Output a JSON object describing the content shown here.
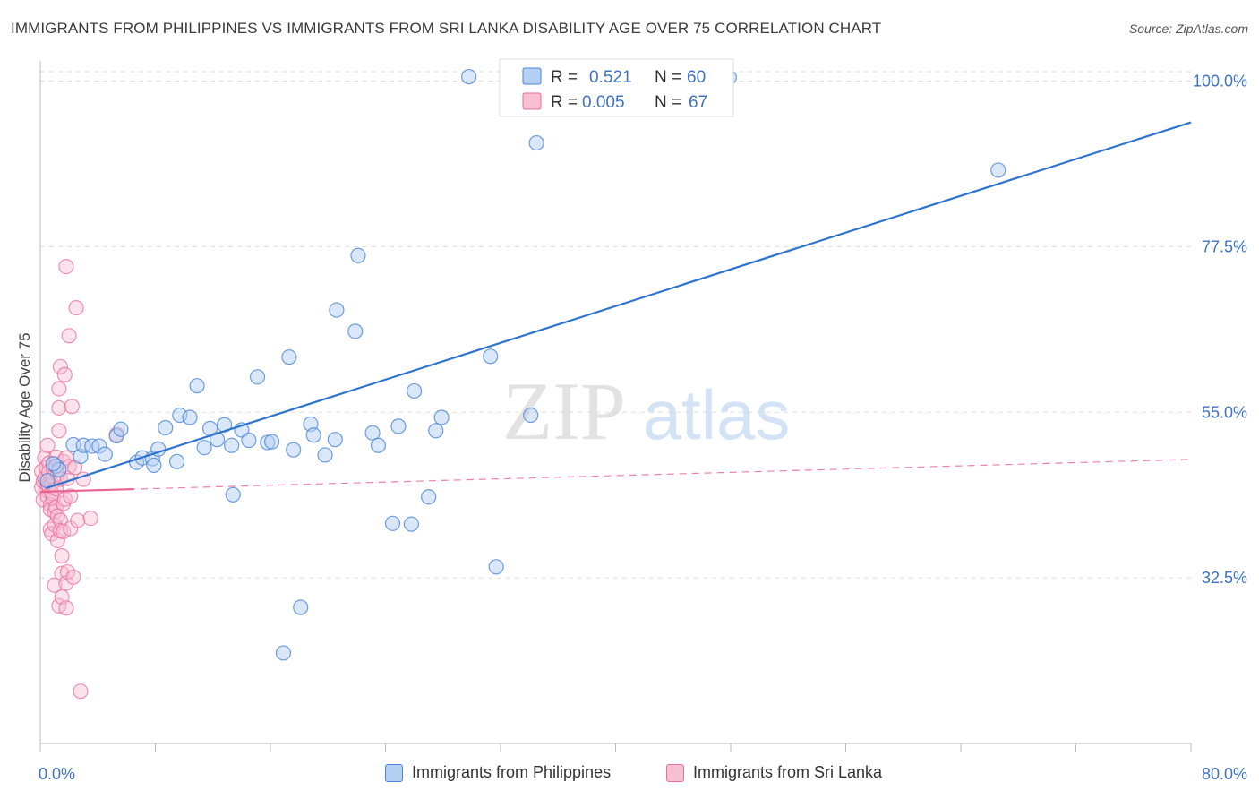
{
  "title": "IMMIGRANTS FROM PHILIPPINES VS IMMIGRANTS FROM SRI LANKA DISABILITY AGE OVER 75 CORRELATION CHART",
  "source": "Source: ZipAtlas.com",
  "watermark": {
    "zip": "ZIP",
    "atlas": "atlas"
  },
  "colors": {
    "blue": "#4a86d8",
    "blue_fill": "#b6d0f3",
    "blue_line": "#2f74d0",
    "pink": "#e96f9a",
    "pink_fill": "#f7bfd2",
    "pink_line": "#e8648f",
    "axis_label": "#3f73c4",
    "grid": "#dddddd"
  },
  "legend_top": {
    "rows": [
      {
        "r_label": "R =",
        "r_value": "0.521",
        "n_label": "N =",
        "n_value": "60",
        "series": "blue"
      },
      {
        "r_label": "R =",
        "r_value": "0.005",
        "n_label": "N =",
        "n_value": "67",
        "series": "pink"
      }
    ]
  },
  "legend_bottom": [
    {
      "label": "Immigrants from Philippines",
      "series": "blue"
    },
    {
      "label": "Immigrants from Sri Lanka",
      "series": "pink"
    }
  ],
  "chart_data": {
    "type": "scatter",
    "title": "IMMIGRANTS FROM PHILIPPINES VS IMMIGRANTS FROM SRI LANKA DISABILITY AGE OVER 75 CORRELATION CHART",
    "xlabel": "",
    "ylabel": "Disability Age Over 75",
    "xlim": [
      0,
      80
    ],
    "ylim": [
      10,
      102.5
    ],
    "x_tick_labels": [
      "0.0%",
      "80.0%"
    ],
    "y_ticks": [
      32.5,
      55.0,
      77.5,
      100.0
    ],
    "y_tick_labels": [
      "32.5%",
      "55.0%",
      "77.5%",
      "100.0%"
    ],
    "grid": true,
    "legend_position": "top-center",
    "series": [
      {
        "name": "Immigrants from Philippines",
        "color": "blue",
        "trend": {
          "x": [
            0.4,
            80
          ],
          "y": [
            44.7,
            94.4
          ]
        },
        "points": [
          [
            0.5,
            45.7
          ],
          [
            1.1,
            47.7
          ],
          [
            1.3,
            47.2
          ],
          [
            2.3,
            50.6
          ],
          [
            2.8,
            49.0
          ],
          [
            3.0,
            50.5
          ],
          [
            3.6,
            50.4
          ],
          [
            4.1,
            50.4
          ],
          [
            4.5,
            49.3
          ],
          [
            5.3,
            51.8
          ],
          [
            5.6,
            52.7
          ],
          [
            6.7,
            48.2
          ],
          [
            7.1,
            48.8
          ],
          [
            7.8,
            48.7
          ],
          [
            7.9,
            47.8
          ],
          [
            8.2,
            50.0
          ],
          [
            8.7,
            52.9
          ],
          [
            9.5,
            48.3
          ],
          [
            9.7,
            54.6
          ],
          [
            10.4,
            54.3
          ],
          [
            10.9,
            58.6
          ],
          [
            11.4,
            50.2
          ],
          [
            11.8,
            52.8
          ],
          [
            12.3,
            51.3
          ],
          [
            12.8,
            53.3
          ],
          [
            13.3,
            50.5
          ],
          [
            13.4,
            43.8
          ],
          [
            14.0,
            52.6
          ],
          [
            14.5,
            51.2
          ],
          [
            15.1,
            59.8
          ],
          [
            15.8,
            50.9
          ],
          [
            16.1,
            51.0
          ],
          [
            16.9,
            22.3
          ],
          [
            17.3,
            62.5
          ],
          [
            17.6,
            49.9
          ],
          [
            18.1,
            28.5
          ],
          [
            18.8,
            53.4
          ],
          [
            19.0,
            51.9
          ],
          [
            19.8,
            49.2
          ],
          [
            20.5,
            51.3
          ],
          [
            20.6,
            68.9
          ],
          [
            21.9,
            66.0
          ],
          [
            22.1,
            76.3
          ],
          [
            23.1,
            52.2
          ],
          [
            23.5,
            50.5
          ],
          [
            24.5,
            39.9
          ],
          [
            24.9,
            53.1
          ],
          [
            25.8,
            39.8
          ],
          [
            26.0,
            57.9
          ],
          [
            27.0,
            43.5
          ],
          [
            27.5,
            52.5
          ],
          [
            27.9,
            54.3
          ],
          [
            29.8,
            100.6
          ],
          [
            31.3,
            62.6
          ],
          [
            31.7,
            34.0
          ],
          [
            34.1,
            54.6
          ],
          [
            34.5,
            91.6
          ],
          [
            47.9,
            100.5
          ],
          [
            66.6,
            87.9
          ],
          [
            0.9,
            48.0
          ]
        ]
      },
      {
        "name": "Immigrants from Sri Lanka",
        "color": "pink",
        "trend": {
          "x": [
            0,
            80
          ],
          "y": [
            44.2,
            48.6
          ]
        },
        "trend_solid_to_x": 6.5,
        "points": [
          [
            0.1,
            47.0
          ],
          [
            0.1,
            44.8
          ],
          [
            0.2,
            45.6
          ],
          [
            0.2,
            43.1
          ],
          [
            0.3,
            48.8
          ],
          [
            0.3,
            46.0
          ],
          [
            0.4,
            47.5
          ],
          [
            0.4,
            44.4
          ],
          [
            0.5,
            45.1
          ],
          [
            0.5,
            43.6
          ],
          [
            0.5,
            50.5
          ],
          [
            0.6,
            48.1
          ],
          [
            0.6,
            46.9
          ],
          [
            0.6,
            44.9
          ],
          [
            0.7,
            42.4
          ],
          [
            0.7,
            41.8
          ],
          [
            0.7,
            39.1
          ],
          [
            0.8,
            45.3
          ],
          [
            0.8,
            44.0
          ],
          [
            0.8,
            38.5
          ],
          [
            0.9,
            47.4
          ],
          [
            0.9,
            46.2
          ],
          [
            0.9,
            43.3
          ],
          [
            1.0,
            41.5
          ],
          [
            1.0,
            39.7
          ],
          [
            1.0,
            31.5
          ],
          [
            1.1,
            48.9
          ],
          [
            1.1,
            44.6
          ],
          [
            1.1,
            42.1
          ],
          [
            1.2,
            46.6
          ],
          [
            1.2,
            40.9
          ],
          [
            1.2,
            37.6
          ],
          [
            1.3,
            58.2
          ],
          [
            1.3,
            55.6
          ],
          [
            1.3,
            52.5
          ],
          [
            1.3,
            28.7
          ],
          [
            1.4,
            61.2
          ],
          [
            1.4,
            45.9
          ],
          [
            1.4,
            40.3
          ],
          [
            1.4,
            38.9
          ],
          [
            1.5,
            29.9
          ],
          [
            1.5,
            35.5
          ],
          [
            1.5,
            33.1
          ],
          [
            1.6,
            48.3
          ],
          [
            1.6,
            42.6
          ],
          [
            1.6,
            38.8
          ],
          [
            1.7,
            60.1
          ],
          [
            1.7,
            43.2
          ],
          [
            1.8,
            74.8
          ],
          [
            1.8,
            48.8
          ],
          [
            1.8,
            31.8
          ],
          [
            1.8,
            28.4
          ],
          [
            1.9,
            46.0
          ],
          [
            1.9,
            33.3
          ],
          [
            2.0,
            65.4
          ],
          [
            2.0,
            47.6
          ],
          [
            2.1,
            43.6
          ],
          [
            2.1,
            39.2
          ],
          [
            2.2,
            55.8
          ],
          [
            2.3,
            32.6
          ],
          [
            2.4,
            47.5
          ],
          [
            2.5,
            69.2
          ],
          [
            2.6,
            40.3
          ],
          [
            2.8,
            17.1
          ],
          [
            3.0,
            45.9
          ],
          [
            3.5,
            40.6
          ],
          [
            5.3,
            52.0
          ]
        ]
      }
    ]
  }
}
